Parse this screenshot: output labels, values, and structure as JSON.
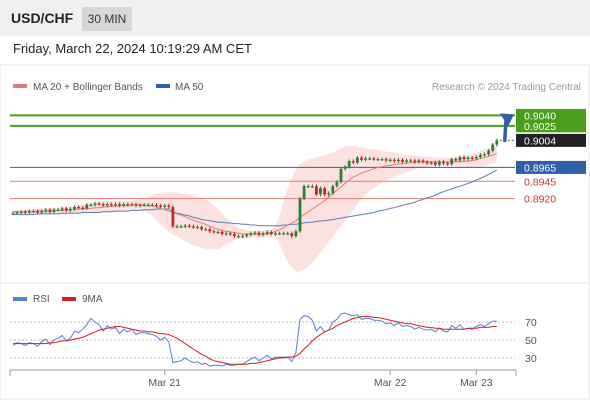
{
  "header": {
    "pair": "USD/CHF",
    "timeframe": "30 MIN"
  },
  "datetime": "Friday, March 22, 2024 10:19:29 AM CET",
  "legend": {
    "bb_label": "MA 20 + Bollinger Bands",
    "ma50_label": "MA 50"
  },
  "credit": "Research © 2024 Trading Central",
  "colors": {
    "resistance": "#4a9e1c",
    "pivot": "#2f5fa8",
    "support": "#e07b7b",
    "up_candle": "#2e7d32",
    "down_candle": "#c62828",
    "bb_fill": "#fbdada",
    "ma20": "#e07b7b",
    "ma50": "#5b7fb5",
    "rsi": "#5b7fd0",
    "rsi_ma": "#d42020",
    "arrow": "#2f5fa8"
  },
  "chart_data": [
    {
      "type": "candlestick",
      "title": "USD/CHF",
      "ylim": [
        0.882,
        0.9068
      ],
      "levels": {
        "resistance": [
          {
            "value": 0.904,
            "label": "0.9040"
          },
          {
            "value": 0.9025,
            "label": "0.9025"
          }
        ],
        "current": {
          "value": 0.9004,
          "label": "0.9004"
        },
        "pivot": {
          "value": 0.8965,
          "label": "0.8965"
        },
        "support": [
          {
            "value": 0.8945,
            "label": "0.8945"
          },
          {
            "value": 0.892,
            "label": "0.8920"
          }
        ]
      },
      "x_ticks": [
        {
          "label": "Mar 21",
          "index": 37
        },
        {
          "label": "Mar 22",
          "index": 92
        },
        {
          "label": "Mar 23",
          "index": 113
        }
      ],
      "bar_count": 119,
      "close": [
        0.8899,
        0.89,
        0.8901,
        0.89,
        0.8902,
        0.8902,
        0.89,
        0.8902,
        0.8904,
        0.8901,
        0.8904,
        0.8904,
        0.8906,
        0.8903,
        0.8905,
        0.8908,
        0.8907,
        0.8906,
        0.8911,
        0.8911,
        0.8913,
        0.8912,
        0.891,
        0.8912,
        0.8911,
        0.8912,
        0.891,
        0.8912,
        0.8911,
        0.8912,
        0.891,
        0.8911,
        0.8911,
        0.8911,
        0.8911,
        0.891,
        0.8909,
        0.891,
        0.8908,
        0.888,
        0.888,
        0.888,
        0.8881,
        0.888,
        0.8879,
        0.8879,
        0.8876,
        0.8876,
        0.8873,
        0.8872,
        0.8872,
        0.8869,
        0.887,
        0.8869,
        0.8866,
        0.8866,
        0.8866,
        0.8868,
        0.887,
        0.8871,
        0.8868,
        0.887,
        0.8872,
        0.8869,
        0.887,
        0.887,
        0.887,
        0.887,
        0.8866,
        0.8873,
        0.892,
        0.8938,
        0.8938,
        0.8938,
        0.8926,
        0.8935,
        0.8926,
        0.8928,
        0.8938,
        0.8944,
        0.8963,
        0.8966,
        0.8974,
        0.8972,
        0.8979,
        0.8976,
        0.8978,
        0.8978,
        0.8977,
        0.8977,
        0.8977,
        0.8975,
        0.8976,
        0.8974,
        0.8976,
        0.8973,
        0.8975,
        0.8975,
        0.8973,
        0.8975,
        0.8973,
        0.8971,
        0.8972,
        0.8969,
        0.8973,
        0.8971,
        0.897,
        0.8977,
        0.8975,
        0.898,
        0.8977,
        0.8979,
        0.8978,
        0.898,
        0.8983,
        0.8984,
        0.8989,
        0.8998,
        0.9004
      ],
      "ma20": [
        0.8901,
        0.8901,
        0.8901,
        0.8901,
        0.8901,
        0.8901,
        0.8902,
        0.8902,
        0.8902,
        0.8902,
        0.8902,
        0.8903,
        0.8903,
        0.8903,
        0.8904,
        0.8904,
        0.8905,
        0.8905,
        0.8906,
        0.8906,
        0.8907,
        0.8907,
        0.8908,
        0.8908,
        0.8909,
        0.8909,
        0.891,
        0.891,
        0.891,
        0.8911,
        0.8911,
        0.8911,
        0.8911,
        0.891,
        0.891,
        0.8908,
        0.8906,
        0.8904,
        0.8902,
        0.89,
        0.8898,
        0.8896,
        0.8894,
        0.8891,
        0.8889,
        0.8887,
        0.8885,
        0.8883,
        0.888,
        0.8878,
        0.8876,
        0.8874,
        0.8873,
        0.8872,
        0.8871,
        0.887,
        0.8869,
        0.8869,
        0.8869,
        0.8869,
        0.8869,
        0.8869,
        0.8869,
        0.887,
        0.8873,
        0.8875,
        0.8878,
        0.8882,
        0.8885,
        0.8888,
        0.8893,
        0.8897,
        0.8901,
        0.8905,
        0.8909,
        0.8913,
        0.8917,
        0.8922,
        0.8927,
        0.8932,
        0.8937,
        0.8942,
        0.8947,
        0.8951,
        0.8954,
        0.8957,
        0.8959,
        0.8961,
        0.8963,
        0.8965,
        0.8966,
        0.8967,
        0.8968,
        0.8969,
        0.897,
        0.897,
        0.8971,
        0.8972,
        0.8972,
        0.8973,
        0.8973,
        0.8973,
        0.8973,
        0.8973,
        0.8973,
        0.8973,
        0.8973,
        0.8973,
        0.8973,
        0.8973,
        0.8974,
        0.8974,
        0.8975,
        0.8976,
        0.8978,
        0.8979,
        0.8981,
        0.8983,
        0.8985
      ],
      "bb_upper": [
        0.8904,
        0.8904,
        0.8904,
        0.8904,
        0.8904,
        0.8905,
        0.8905,
        0.8906,
        0.8906,
        0.8906,
        0.8907,
        0.8907,
        0.8908,
        0.8908,
        0.8909,
        0.891,
        0.8911,
        0.8912,
        0.8913,
        0.8914,
        0.8915,
        0.8916,
        0.8916,
        0.8917,
        0.8917,
        0.8917,
        0.8917,
        0.8917,
        0.8917,
        0.8917,
        0.8918,
        0.8919,
        0.892,
        0.8922,
        0.8925,
        0.8927,
        0.8928,
        0.8929,
        0.8929,
        0.8929,
        0.8929,
        0.8928,
        0.8927,
        0.8926,
        0.8925,
        0.8923,
        0.8921,
        0.8918,
        0.8915,
        0.891,
        0.8905,
        0.8898,
        0.8892,
        0.8887,
        0.8882,
        0.8878,
        0.8876,
        0.8875,
        0.8874,
        0.8874,
        0.8874,
        0.8874,
        0.8874,
        0.8875,
        0.888,
        0.8895,
        0.8915,
        0.8935,
        0.895,
        0.8962,
        0.897,
        0.8974,
        0.8976,
        0.8978,
        0.8979,
        0.8981,
        0.8983,
        0.8985,
        0.8987,
        0.899,
        0.8993,
        0.8995,
        0.8996,
        0.8996,
        0.8995,
        0.8994,
        0.8993,
        0.8992,
        0.8991,
        0.899,
        0.8989,
        0.8988,
        0.8987,
        0.8986,
        0.8985,
        0.8984,
        0.8983,
        0.8983,
        0.8982,
        0.8981,
        0.8981,
        0.898,
        0.898,
        0.8979,
        0.8979,
        0.8979,
        0.8979,
        0.8979,
        0.8979,
        0.898,
        0.8981,
        0.8982,
        0.8984,
        0.8986,
        0.8989,
        0.8991,
        0.8993,
        0.8995,
        0.8997
      ],
      "bb_lower": [
        0.8898,
        0.8898,
        0.8898,
        0.8898,
        0.8898,
        0.8897,
        0.8898,
        0.8898,
        0.8898,
        0.8898,
        0.8897,
        0.8898,
        0.8898,
        0.8898,
        0.8898,
        0.8899,
        0.8899,
        0.8898,
        0.8899,
        0.8899,
        0.8899,
        0.8899,
        0.89,
        0.89,
        0.89,
        0.8901,
        0.8902,
        0.8903,
        0.8903,
        0.8904,
        0.8904,
        0.8903,
        0.8902,
        0.8899,
        0.8895,
        0.8889,
        0.8883,
        0.8877,
        0.8872,
        0.8868,
        0.8865,
        0.8862,
        0.8859,
        0.8856,
        0.8853,
        0.8851,
        0.8849,
        0.8848,
        0.8847,
        0.8847,
        0.8847,
        0.885,
        0.8854,
        0.8857,
        0.886,
        0.8862,
        0.8862,
        0.8863,
        0.8864,
        0.8864,
        0.8864,
        0.8864,
        0.8864,
        0.8864,
        0.8866,
        0.8855,
        0.8841,
        0.8829,
        0.8821,
        0.8815,
        0.8815,
        0.8818,
        0.8822,
        0.8828,
        0.8835,
        0.8842,
        0.885,
        0.8858,
        0.8866,
        0.8874,
        0.8881,
        0.8888,
        0.8896,
        0.8904,
        0.8913,
        0.892,
        0.8926,
        0.8931,
        0.8935,
        0.8939,
        0.8943,
        0.8946,
        0.8949,
        0.8951,
        0.8954,
        0.8956,
        0.8958,
        0.896,
        0.8962,
        0.8964,
        0.8965,
        0.8966,
        0.8966,
        0.8967,
        0.8967,
        0.8967,
        0.8967,
        0.8967,
        0.8967,
        0.8966,
        0.8967,
        0.8966,
        0.8966,
        0.8966,
        0.8966,
        0.8967,
        0.8969,
        0.8971,
        0.8973
      ],
      "ma50": [
        0.8897,
        0.8897,
        0.8897,
        0.8897,
        0.8897,
        0.8897,
        0.8898,
        0.8898,
        0.8898,
        0.8898,
        0.8898,
        0.8898,
        0.8899,
        0.8899,
        0.8899,
        0.8899,
        0.8899,
        0.89,
        0.89,
        0.89,
        0.89,
        0.89,
        0.8901,
        0.8901,
        0.8901,
        0.8902,
        0.8902,
        0.8902,
        0.8902,
        0.8903,
        0.8903,
        0.8903,
        0.8904,
        0.8904,
        0.8904,
        0.8905,
        0.8905,
        0.8905,
        0.8905,
        0.8901,
        0.8899,
        0.8898,
        0.8896,
        0.8895,
        0.8893,
        0.8892,
        0.889,
        0.8889,
        0.8888,
        0.8887,
        0.8886,
        0.8886,
        0.8885,
        0.8885,
        0.8884,
        0.8884,
        0.8883,
        0.8883,
        0.8882,
        0.8882,
        0.8881,
        0.8881,
        0.8881,
        0.8881,
        0.8881,
        0.8881,
        0.8882,
        0.8882,
        0.8883,
        0.8883,
        0.8884,
        0.8885,
        0.8886,
        0.8886,
        0.8887,
        0.8888,
        0.8888,
        0.8889,
        0.889,
        0.8891,
        0.8892,
        0.8893,
        0.8894,
        0.8895,
        0.8896,
        0.8897,
        0.8898,
        0.8899,
        0.89,
        0.8902,
        0.8903,
        0.8904,
        0.8906,
        0.8907,
        0.8909,
        0.891,
        0.8912,
        0.8913,
        0.8915,
        0.8917,
        0.8919,
        0.8921,
        0.8923,
        0.8925,
        0.8928,
        0.893,
        0.8932,
        0.8934,
        0.8936,
        0.8938,
        0.894,
        0.8942,
        0.8944,
        0.8947,
        0.8949,
        0.8952,
        0.8955,
        0.8958,
        0.8961
      ]
    },
    {
      "type": "line",
      "title": "RSI",
      "ylim": [
        20,
        80
      ],
      "y_ticks": [
        70,
        50,
        30
      ],
      "series": [
        {
          "name": "RSI",
          "values": [
            44,
            47,
            46,
            44,
            47,
            46,
            43,
            48,
            51,
            45,
            50,
            52,
            55,
            49,
            52,
            60,
            58,
            62,
            67,
            74,
            70,
            67,
            60,
            66,
            62,
            64,
            57,
            62,
            59,
            62,
            56,
            58,
            58,
            57,
            56,
            54,
            50,
            53,
            48,
            25,
            26,
            27,
            30,
            27,
            25,
            26,
            23,
            24,
            21,
            22,
            22,
            21,
            23,
            22,
            22,
            23,
            23,
            26,
            29,
            31,
            27,
            30,
            33,
            29,
            31,
            31,
            31,
            31,
            26,
            36,
            73,
            77,
            76,
            72,
            60,
            65,
            59,
            61,
            70,
            73,
            79,
            80,
            78,
            77,
            78,
            73,
            74,
            74,
            72,
            72,
            71,
            68,
            69,
            66,
            69,
            65,
            66,
            65,
            62,
            64,
            62,
            61,
            62,
            59,
            63,
            60,
            59,
            66,
            63,
            67,
            62,
            63,
            62,
            65,
            67,
            65,
            68,
            71,
            71
          ]
        },
        {
          "name": "9MA",
          "values": [
            46,
            46,
            46,
            46,
            46,
            46,
            46,
            46,
            46,
            47,
            47,
            48,
            49,
            49,
            50,
            51,
            52,
            53,
            55,
            57,
            59,
            61,
            62,
            63,
            64,
            65,
            65,
            64,
            63,
            62,
            61,
            60,
            60,
            59,
            59,
            58,
            57,
            57,
            56,
            54,
            52,
            49,
            46,
            43,
            40,
            37,
            34,
            32,
            29,
            27,
            26,
            25,
            24,
            23,
            23,
            23,
            23,
            23,
            24,
            24,
            25,
            26,
            27,
            28,
            29,
            30,
            30,
            31,
            31,
            32,
            35,
            40,
            44,
            49,
            53,
            56,
            59,
            61,
            63,
            66,
            68,
            70,
            72,
            74,
            75,
            76,
            76,
            76,
            75,
            75,
            74,
            73,
            72,
            71,
            70,
            69,
            68,
            68,
            67,
            66,
            65,
            64,
            64,
            63,
            63,
            62,
            62,
            62,
            62,
            62,
            62,
            63,
            63,
            63,
            64,
            64,
            64,
            65,
            65
          ]
        }
      ]
    }
  ]
}
